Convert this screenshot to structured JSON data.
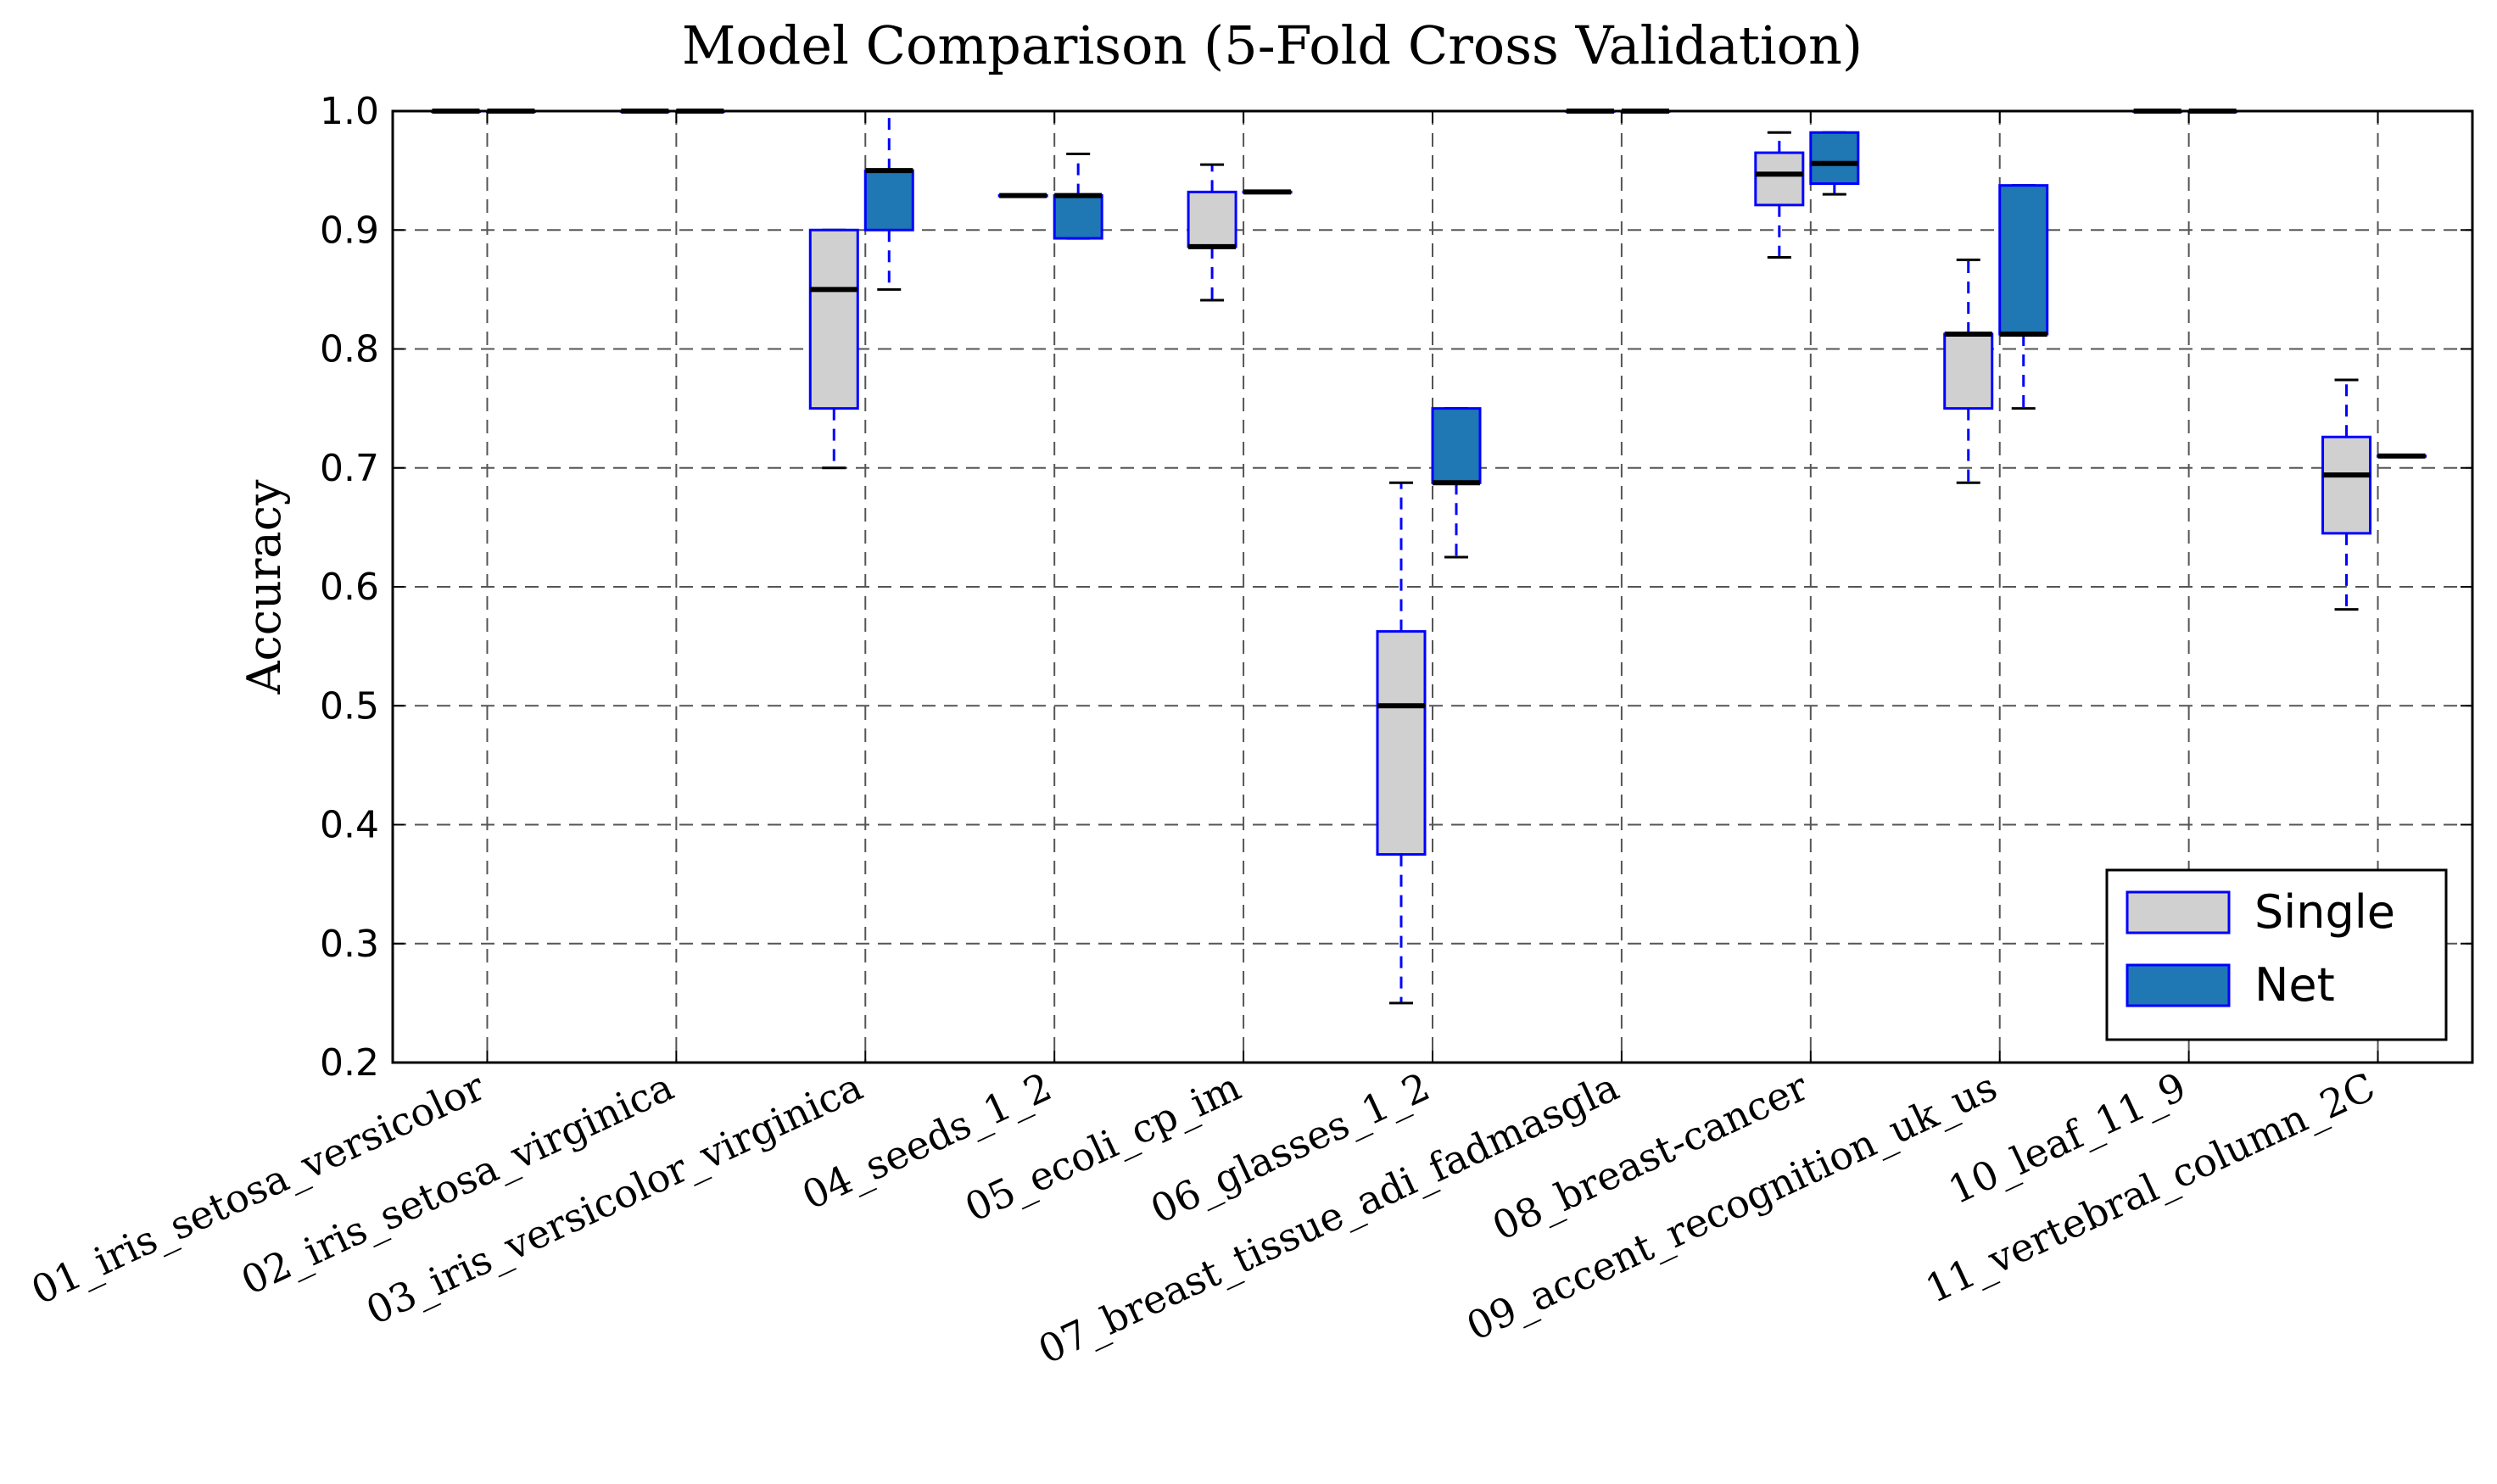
{
  "chart_data": {
    "type": "box",
    "title": "Model Comparison (5-Fold Cross Validation)",
    "xlabel": "",
    "ylabel": "Accuracy",
    "ylim": [
      0.2,
      1.0
    ],
    "yticks": [
      "0.2",
      "0.3",
      "0.4",
      "0.5",
      "0.6",
      "0.7",
      "0.8",
      "0.9",
      "1.0"
    ],
    "grid": true,
    "legend_position": "lower right",
    "categories": [
      "01_iris_setosa_versicolor",
      "02_iris_setosa_virginica",
      "03_iris_versicolor_virginica",
      "04_seeds_1_2",
      "05_ecoli_cp_im",
      "06_glasses_1_2",
      "07_breast_tissue_adi_fadmasgla",
      "08_breast-cancer",
      "09_accent_recognition_uk_us",
      "10_leaf_11_9",
      "11_vertebral_column_2C"
    ],
    "series": [
      {
        "name": "Single",
        "color": "#d0d0d0",
        "edge_color": "#0000ff",
        "boxes": [
          {
            "min": 1.0,
            "q1": 1.0,
            "median": 1.0,
            "q3": 1.0,
            "max": 1.0
          },
          {
            "min": 1.0,
            "q1": 1.0,
            "median": 1.0,
            "q3": 1.0,
            "max": 1.0
          },
          {
            "min": 0.7,
            "q1": 0.75,
            "median": 0.85,
            "q3": 0.9,
            "max": 0.9
          },
          {
            "min": 0.929,
            "q1": 0.929,
            "median": 0.929,
            "q3": 0.929,
            "max": 0.929
          },
          {
            "min": 0.841,
            "q1": 0.886,
            "median": 0.886,
            "q3": 0.932,
            "max": 0.955
          },
          {
            "min": 0.25,
            "q1": 0.375,
            "median": 0.5,
            "q3": 0.5625,
            "max": 0.6875
          },
          {
            "min": 1.0,
            "q1": 1.0,
            "median": 1.0,
            "q3": 1.0,
            "max": 1.0
          },
          {
            "min": 0.877,
            "q1": 0.921,
            "median": 0.947,
            "q3": 0.965,
            "max": 0.982
          },
          {
            "min": 0.6875,
            "q1": 0.75,
            "median": 0.8125,
            "q3": 0.8125,
            "max": 0.875
          },
          {
            "min": 1.0,
            "q1": 1.0,
            "median": 1.0,
            "q3": 1.0,
            "max": 1.0
          },
          {
            "min": 0.581,
            "q1": 0.645,
            "median": 0.694,
            "q3": 0.726,
            "max": 0.774
          }
        ]
      },
      {
        "name": "Net",
        "color": "#1f77b4",
        "edge_color": "#0000ff",
        "boxes": [
          {
            "min": 1.0,
            "q1": 1.0,
            "median": 1.0,
            "q3": 1.0,
            "max": 1.0
          },
          {
            "min": 1.0,
            "q1": 1.0,
            "median": 1.0,
            "q3": 1.0,
            "max": 1.0
          },
          {
            "min": 0.85,
            "q1": 0.9,
            "median": 0.95,
            "q3": 0.95,
            "max": 1.0
          },
          {
            "min": 0.893,
            "q1": 0.893,
            "median": 0.929,
            "q3": 0.929,
            "max": 0.964
          },
          {
            "min": 0.932,
            "q1": 0.932,
            "median": 0.932,
            "q3": 0.932,
            "max": 0.932
          },
          {
            "min": 0.625,
            "q1": 0.6875,
            "median": 0.6875,
            "q3": 0.75,
            "max": 0.75
          },
          {
            "min": 1.0,
            "q1": 1.0,
            "median": 1.0,
            "q3": 1.0,
            "max": 1.0
          },
          {
            "min": 0.93,
            "q1": 0.939,
            "median": 0.956,
            "q3": 0.982,
            "max": 0.982
          },
          {
            "min": 0.75,
            "q1": 0.8125,
            "median": 0.8125,
            "q3": 0.9375,
            "max": 0.9375
          },
          {
            "min": 1.0,
            "q1": 1.0,
            "median": 1.0,
            "q3": 1.0,
            "max": 1.0
          },
          {
            "min": 0.71,
            "q1": 0.71,
            "median": 0.71,
            "q3": 0.71,
            "max": 0.71
          }
        ]
      }
    ]
  }
}
